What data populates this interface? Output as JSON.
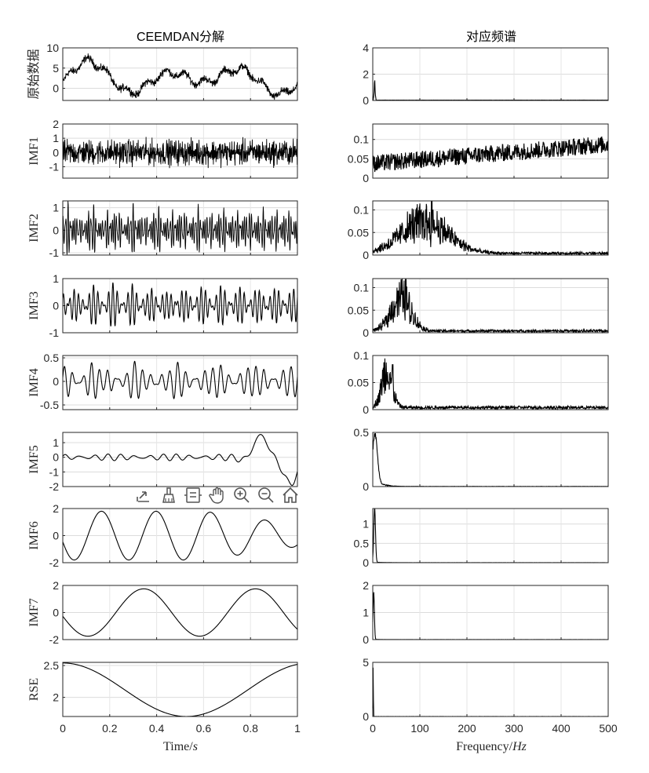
{
  "figure_titles": {
    "left": "CEEMDAN分解",
    "right": "对应频谱"
  },
  "x_labels": {
    "left": {
      "text": "Time/",
      "var": "s"
    },
    "right": {
      "text": "Frequency/",
      "var": "Hz"
    }
  },
  "toolbar": {
    "buttons": [
      {
        "icon": "export-icon"
      },
      {
        "icon": "brush-icon"
      },
      {
        "icon": "datatip-icon"
      },
      {
        "icon": "pan-hand-icon"
      },
      {
        "icon": "zoom-in-icon"
      },
      {
        "icon": "zoom-out-icon"
      },
      {
        "icon": "home-icon"
      }
    ]
  },
  "chart_data": [
    {
      "type": "line",
      "panel": "time",
      "ylabel": "原始数据",
      "xlim": [
        0,
        1
      ],
      "ylim": [
        -3,
        10
      ],
      "yticks": [
        "0",
        "5",
        "10"
      ],
      "ytick_values": [
        0,
        5,
        10
      ],
      "series": [
        {
          "noise": 0.8,
          "components": [
            [
              1.8,
              2,
              0
            ],
            [
              2.6,
              3,
              -0.4
            ],
            [
              0.9,
              12,
              0
            ]
          ],
          "offset": 2.4
        }
      ]
    },
    {
      "type": "line",
      "panel": "time",
      "ylabel": "IMF1",
      "xlim": [
        0,
        1
      ],
      "ylim": [
        -1.8,
        2
      ],
      "yticks": [
        "-1",
        "0",
        "1",
        "2"
      ],
      "ytick_values": [
        -1,
        0,
        1,
        2
      ],
      "series": [
        {
          "noise": 0.75,
          "components": [],
          "offset": 0
        }
      ]
    },
    {
      "type": "line",
      "panel": "time",
      "ylabel": "IMF2",
      "xlim": [
        0,
        1
      ],
      "ylim": [
        -1.1,
        1.3
      ],
      "yticks": [
        "-1",
        "0",
        "1"
      ],
      "ytick_values": [
        -1,
        0,
        1
      ],
      "series": [
        {
          "noise": 0,
          "components": [
            [
              0.35,
              101,
              0
            ],
            [
              0.3,
              137,
              1
            ],
            [
              0.25,
              83,
              2
            ]
          ],
          "offset": 0
        }
      ]
    },
    {
      "type": "line",
      "panel": "time",
      "ylabel": "IMF3",
      "xlim": [
        0,
        1
      ],
      "ylim": [
        -1,
        1
      ],
      "yticks": [
        "-1",
        "0",
        "1"
      ],
      "ytick_values": [
        -1,
        0,
        1
      ],
      "series": [
        {
          "noise": 0,
          "components": [
            [
              0.3,
              48,
              0
            ],
            [
              0.28,
              61,
              1.3
            ]
          ],
          "offset": 0
        }
      ]
    },
    {
      "type": "line",
      "panel": "time",
      "ylabel": "IMF4",
      "xlim": [
        0,
        1
      ],
      "ylim": [
        -0.6,
        0.55
      ],
      "yticks": [
        "-0.5",
        "0",
        "0.5"
      ],
      "ytick_values": [
        -0.5,
        0,
        0.5
      ],
      "series": [
        {
          "noise": 0,
          "components": [
            [
              0.17,
              27,
              0
            ],
            [
              0.13,
              33,
              0.7
            ]
          ],
          "offset": 0
        }
      ]
    },
    {
      "type": "line",
      "panel": "time",
      "ylabel": "IMF5",
      "xlim": [
        0,
        1
      ],
      "ylim": [
        -2,
        1.7
      ],
      "yticks": [
        "-2",
        "-1",
        "0",
        "1"
      ],
      "ytick_values": [
        -2,
        -1,
        0,
        1
      ],
      "series": [
        {
          "noise": 0,
          "components": [
            [
              0.15,
              17,
              0
            ],
            [
              0.08,
              21,
              1
            ]
          ],
          "burst": true,
          "offset": 0
        }
      ]
    },
    {
      "type": "line",
      "panel": "time",
      "ylabel": "IMF6",
      "xlim": [
        0,
        1
      ],
      "ylim": [
        -2,
        2
      ],
      "yticks": [
        "-2",
        "0",
        "2"
      ],
      "ytick_values": [
        -2,
        0,
        2
      ],
      "series": [
        {
          "noise": 0,
          "components": [
            [
              1.8,
              4.3,
              3.4
            ]
          ],
          "decay": true,
          "offset": 0
        }
      ]
    },
    {
      "type": "line",
      "panel": "time",
      "ylabel": "IMF7",
      "xlim": [
        0,
        1
      ],
      "ylim": [
        -2,
        2
      ],
      "yticks": [
        "-2",
        "0",
        "2"
      ],
      "ytick_values": [
        -2,
        0,
        2
      ],
      "series": [
        {
          "noise": 0,
          "components": [
            [
              1.75,
              2.1,
              3.3
            ]
          ],
          "offset": 0
        }
      ]
    },
    {
      "type": "line",
      "panel": "time",
      "ylabel": "RSE",
      "xlim": [
        0,
        1
      ],
      "ylim": [
        1.7,
        2.55
      ],
      "yticks": [
        "2",
        "2.5"
      ],
      "ytick_values": [
        2,
        2.5
      ],
      "xticks": [
        "0",
        "0.2",
        "0.4",
        "0.6",
        "0.8",
        "1"
      ],
      "xtick_values": [
        0,
        0.2,
        0.4,
        0.6,
        0.8,
        1
      ],
      "series": [
        {
          "noise": 0,
          "components": [
            [
              0.42,
              0.95,
              1.57
            ]
          ],
          "offset": 2.12
        }
      ]
    },
    {
      "type": "line",
      "panel": "freq",
      "xlim": [
        0,
        500
      ],
      "ylim": [
        0,
        4
      ],
      "yticks": [
        "0",
        "2",
        "4"
      ],
      "ytick_values": [
        0,
        2,
        4
      ],
      "series": [
        {
          "shape": "spike",
          "peak": 2.0,
          "base": 0.02,
          "spike_x": 4
        }
      ]
    },
    {
      "type": "line",
      "panel": "freq",
      "xlim": [
        0,
        500
      ],
      "ylim": [
        0,
        0.14
      ],
      "yticks": [
        "0",
        "0.05",
        "0.1"
      ],
      "ytick_values": [
        0,
        0.05,
        0.1
      ],
      "series": [
        {
          "shape": "rising",
          "start": 0.015,
          "end": 0.065,
          "noise": 0.045
        }
      ]
    },
    {
      "type": "line",
      "panel": "freq",
      "xlim": [
        0,
        500
      ],
      "ylim": [
        0,
        0.12
      ],
      "yticks": [
        "0",
        "0.05",
        "0.1"
      ],
      "ytick_values": [
        0,
        0.05,
        0.1
      ],
      "series": [
        {
          "shape": "band",
          "center": 110,
          "width": 70,
          "peak": 0.05,
          "noise": 0.04,
          "spike_x": 125,
          "spike_y": 0.12
        }
      ]
    },
    {
      "type": "line",
      "panel": "freq",
      "xlim": [
        0,
        500
      ],
      "ylim": [
        0,
        0.12
      ],
      "yticks": [
        "0",
        "0.05",
        "0.1"
      ],
      "ytick_values": [
        0,
        0.05,
        0.1
      ],
      "series": [
        {
          "shape": "band",
          "center": 60,
          "width": 30,
          "peak": 0.055,
          "noise": 0.035,
          "spike_x": 70,
          "spike_y": 0.118
        }
      ]
    },
    {
      "type": "line",
      "panel": "freq",
      "xlim": [
        0,
        500
      ],
      "ylim": [
        0,
        0.1
      ],
      "yticks": [
        "0",
        "0.05",
        "0.1"
      ],
      "ytick_values": [
        0,
        0.05,
        0.1
      ],
      "series": [
        {
          "shape": "band",
          "center": 30,
          "width": 16,
          "peak": 0.05,
          "noise": 0.03,
          "spike_x": 42,
          "spike_y": 0.083
        }
      ]
    },
    {
      "type": "line",
      "panel": "freq",
      "xlim": [
        0,
        500
      ],
      "ylim": [
        0,
        0.5
      ],
      "yticks": [
        "0",
        "0.5"
      ],
      "ytick_values": [
        0,
        0.5
      ],
      "series": [
        {
          "shape": "lowpeak",
          "peak": 0.42,
          "center": 5,
          "width": 7,
          "tail": 0.08
        }
      ]
    },
    {
      "type": "line",
      "panel": "freq",
      "xlim": [
        0,
        500
      ],
      "ylim": [
        0,
        1.4
      ],
      "yticks": [
        "0",
        "0.5",
        "1"
      ],
      "ytick_values": [
        0,
        0.5,
        1
      ],
      "series": [
        {
          "shape": "lowpeak",
          "peak": 1.4,
          "center": 4,
          "width": 2.5,
          "tail": 0.02
        }
      ]
    },
    {
      "type": "line",
      "panel": "freq",
      "xlim": [
        0,
        500
      ],
      "ylim": [
        0,
        2
      ],
      "yticks": [
        "0",
        "1",
        "2"
      ],
      "ytick_values": [
        0,
        1,
        2
      ],
      "series": [
        {
          "shape": "lowpeak",
          "peak": 1.75,
          "center": 2,
          "width": 2,
          "tail": 0.01
        }
      ]
    },
    {
      "type": "line",
      "panel": "freq",
      "xlim": [
        0,
        500
      ],
      "ylim": [
        0,
        5
      ],
      "yticks": [
        "0",
        "5"
      ],
      "ytick_values": [
        0,
        5
      ],
      "xticks": [
        "0",
        "100",
        "200",
        "300",
        "400",
        "500"
      ],
      "xtick_values": [
        0,
        100,
        200,
        300,
        400,
        500
      ],
      "series": [
        {
          "shape": "lowpeak",
          "peak": 4.6,
          "center": 0.8,
          "width": 0.6,
          "tail": 0
        }
      ]
    }
  ]
}
